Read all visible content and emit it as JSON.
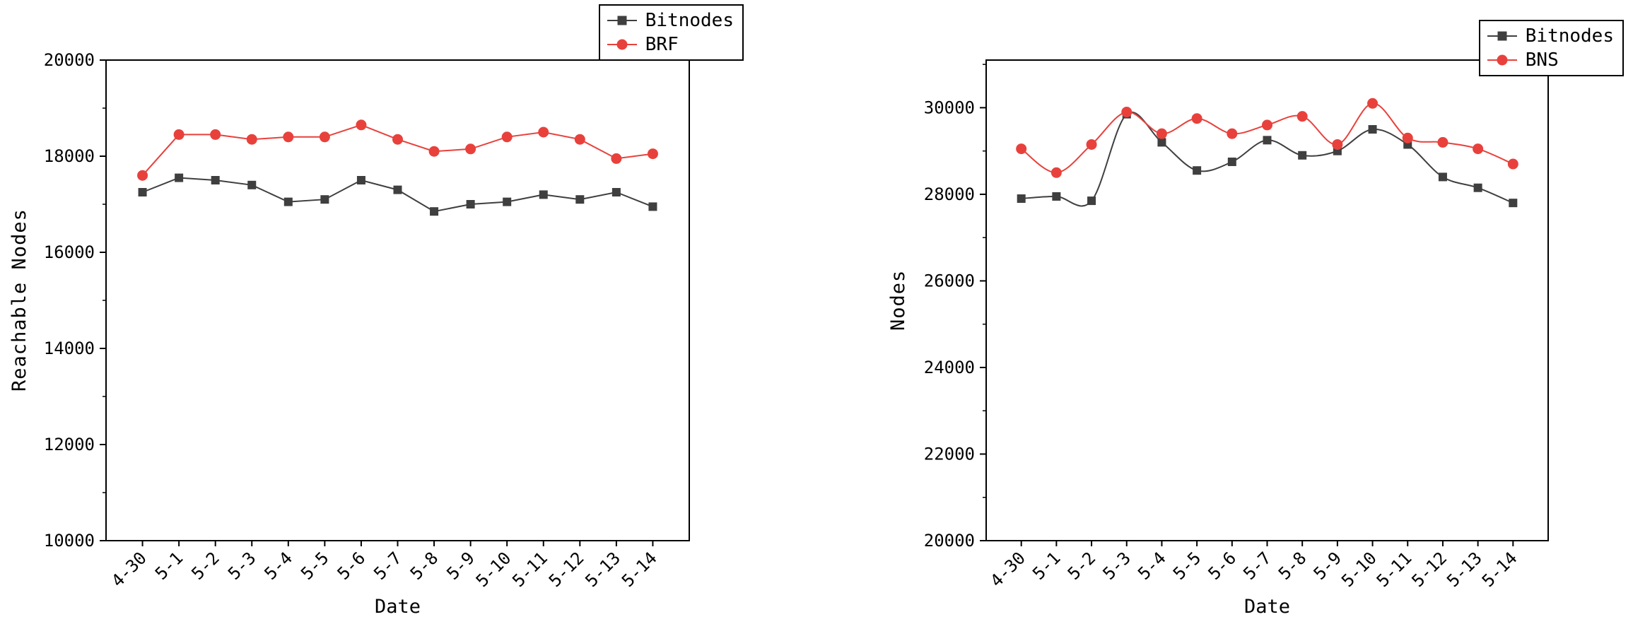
{
  "page": {
    "background": "#ffffff"
  },
  "chart_data": [
    {
      "type": "line",
      "title": "",
      "xlabel": "Date",
      "ylabel": "Reachable Nodes",
      "ylim": [
        10000,
        20000
      ],
      "yticks": [
        10000,
        12000,
        14000,
        16000,
        18000,
        20000
      ],
      "categories": [
        "4-30",
        "5-1",
        "5-2",
        "5-3",
        "5-4",
        "5-5",
        "5-6",
        "5-7",
        "5-8",
        "5-9",
        "5-10",
        "5-11",
        "5-12",
        "5-13",
        "5-14"
      ],
      "grid": false,
      "legend_position": "top-right",
      "series": [
        {
          "name": "Bitnodes",
          "color": "#3f3f3f",
          "marker": "square",
          "smooth": false,
          "values": [
            17250,
            17550,
            17500,
            17400,
            17050,
            17100,
            17500,
            17300,
            16850,
            17000,
            17050,
            17200,
            17100,
            17250,
            16950
          ]
        },
        {
          "name": "BRF",
          "color": "#e8413c",
          "marker": "circle",
          "smooth": false,
          "values": [
            17600,
            18450,
            18450,
            18350,
            18400,
            18400,
            18650,
            18350,
            18100,
            18150,
            18400,
            18500,
            18350,
            17950,
            18050
          ]
        }
      ]
    },
    {
      "type": "line",
      "title": "",
      "xlabel": "Date",
      "ylabel": "Nodes",
      "ylim": [
        20000,
        31100
      ],
      "yticks": [
        20000,
        22000,
        24000,
        26000,
        28000,
        30000
      ],
      "categories": [
        "4-30",
        "5-1",
        "5-2",
        "5-3",
        "5-4",
        "5-5",
        "5-6",
        "5-7",
        "5-8",
        "5-9",
        "5-10",
        "5-11",
        "5-12",
        "5-13",
        "5-14"
      ],
      "grid": false,
      "legend_position": "top-right",
      "series": [
        {
          "name": "Bitnodes",
          "color": "#3f3f3f",
          "marker": "square",
          "smooth": true,
          "values": [
            27900,
            27950,
            27850,
            29850,
            29200,
            28550,
            28750,
            29250,
            28900,
            29000,
            29500,
            29150,
            28400,
            28150,
            27800
          ]
        },
        {
          "name": "BNS",
          "color": "#e8413c",
          "marker": "circle",
          "smooth": true,
          "values": [
            29050,
            28500,
            29150,
            29900,
            29400,
            29750,
            29400,
            29600,
            29800,
            29150,
            30100,
            29300,
            29200,
            29050,
            28700
          ]
        }
      ]
    }
  ]
}
